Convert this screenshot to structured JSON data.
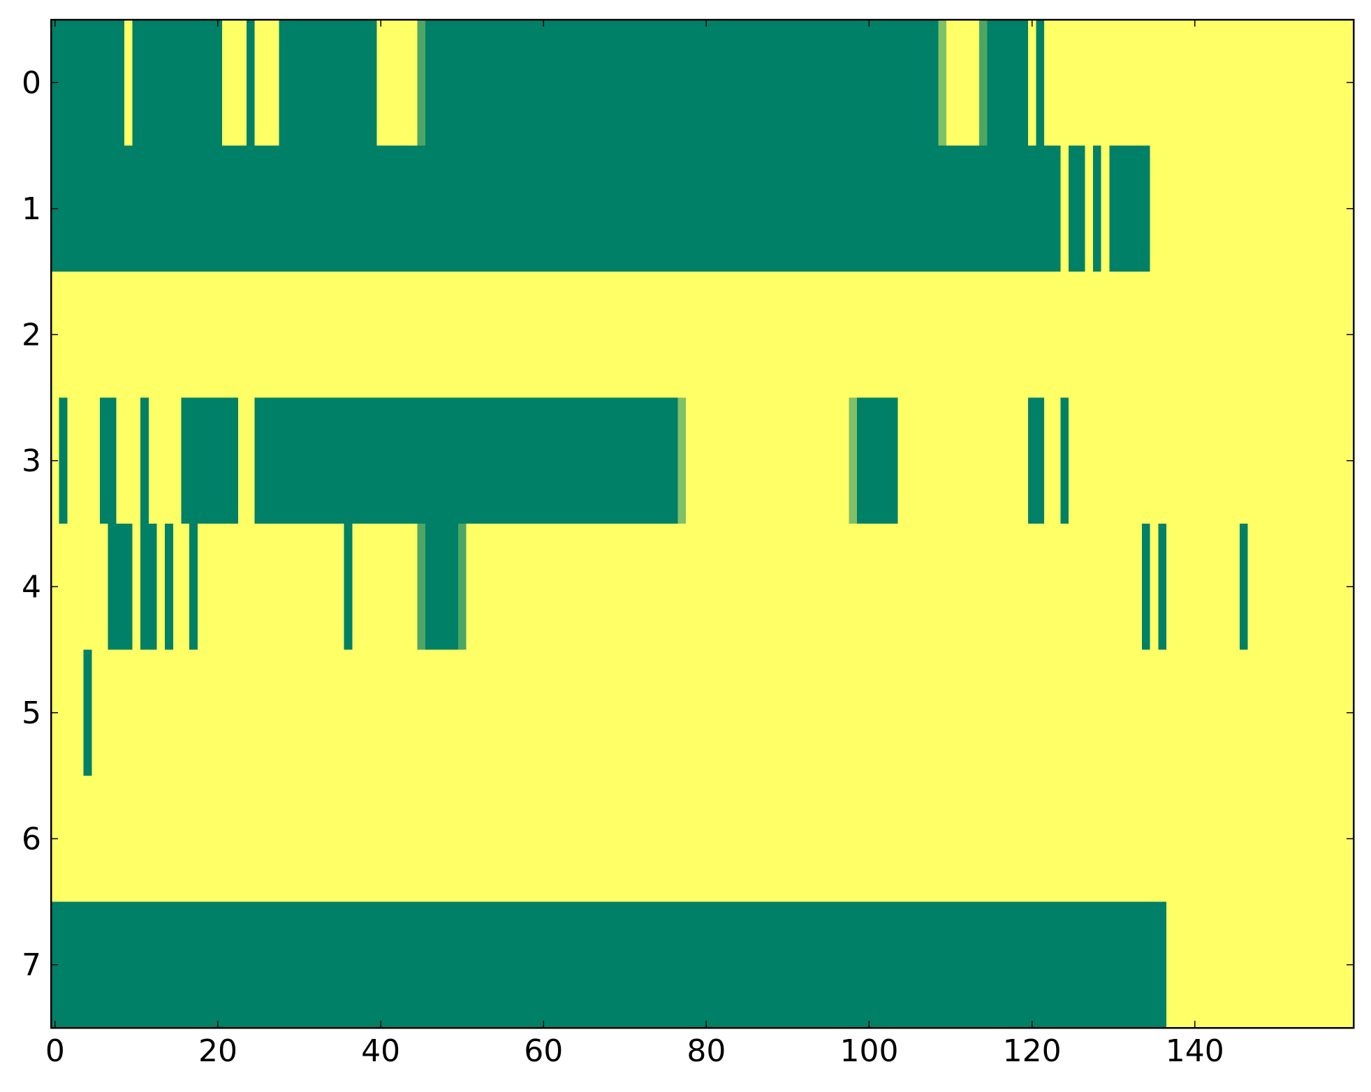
{
  "chart_data": {
    "type": "heatmap",
    "xlim": [
      -0.5,
      159.5
    ],
    "ylim": [
      7.5,
      -0.5
    ],
    "xticks": [
      0,
      20,
      40,
      60,
      80,
      100,
      120,
      140
    ],
    "yticks": [
      0,
      1,
      2,
      3,
      4,
      5,
      6,
      7
    ],
    "colormap": "summer",
    "clim": [
      0,
      1
    ],
    "colors": [
      "#008066",
      "#ffff66"
    ],
    "values": [
      [
        0,
        0,
        0,
        0,
        0,
        0,
        0,
        0,
        0,
        1,
        0,
        0,
        0,
        0,
        0,
        0,
        0,
        0,
        0,
        0,
        0,
        1,
        1,
        1,
        0,
        1,
        1,
        1,
        0,
        0,
        0,
        0,
        0,
        0,
        0,
        0,
        0,
        0,
        0,
        0,
        1,
        1,
        1,
        1,
        1,
        0.3,
        0,
        0,
        0,
        0,
        0,
        0,
        0,
        0,
        0,
        0,
        0,
        0,
        0,
        0,
        0,
        0,
        0,
        0,
        0,
        0,
        0,
        0,
        0,
        0,
        0,
        0,
        0,
        0,
        0,
        0,
        0,
        0,
        0,
        0,
        0,
        0,
        0,
        0,
        0,
        0,
        0,
        0,
        0,
        0,
        0,
        0,
        0,
        0,
        0,
        0,
        0,
        0,
        0,
        0,
        0,
        0,
        0,
        0,
        0,
        0,
        0,
        0,
        0,
        0.5,
        1,
        1,
        1,
        1,
        0.3,
        0,
        0,
        0,
        0,
        0,
        1,
        0,
        1,
        1,
        1,
        1,
        1,
        1,
        1,
        1,
        1,
        1,
        1,
        1,
        1,
        1,
        1,
        1,
        1,
        1,
        1,
        1,
        1,
        1,
        1,
        1,
        1,
        1,
        1,
        1,
        1,
        1,
        1,
        1,
        1,
        1,
        1,
        1,
        1,
        1
      ],
      [
        0,
        0,
        0,
        0,
        0,
        0,
        0,
        0,
        0,
        0,
        0,
        0,
        0,
        0,
        0,
        0,
        0,
        0,
        0,
        0,
        0,
        0,
        0,
        0,
        0,
        0,
        0,
        0,
        0,
        0,
        0,
        0,
        0,
        0,
        0,
        0,
        0,
        0,
        0,
        0,
        0,
        0,
        0,
        0,
        0,
        0,
        0,
        0,
        0,
        0,
        0,
        0,
        0,
        0,
        0,
        0,
        0,
        0,
        0,
        0,
        0,
        0,
        0,
        0,
        0,
        0,
        0,
        0,
        0,
        0,
        0,
        0,
        0,
        0,
        0,
        0,
        0,
        0,
        0,
        0,
        0,
        0,
        0,
        0,
        0,
        0,
        0,
        0,
        0,
        0,
        0,
        0,
        0,
        0,
        0,
        0,
        0,
        0,
        0,
        0,
        0,
        0,
        0,
        0,
        0,
        0,
        0,
        0,
        0,
        0,
        0,
        0,
        0,
        0,
        0,
        0,
        0,
        0,
        0,
        0,
        0,
        0,
        0,
        0,
        1,
        0,
        0,
        1,
        0,
        1,
        0,
        0,
        0,
        0,
        0,
        1,
        1,
        1,
        1,
        1,
        1,
        1,
        1,
        1,
        1,
        1,
        1,
        1,
        1,
        1,
        1,
        1,
        1,
        1,
        1,
        1,
        1,
        1,
        1,
        1
      ],
      [
        1,
        1,
        1,
        1,
        1,
        1,
        1,
        1,
        1,
        1,
        1,
        1,
        1,
        1,
        1,
        1,
        1,
        1,
        1,
        1,
        1,
        1,
        1,
        1,
        1,
        1,
        1,
        1,
        1,
        1,
        1,
        1,
        1,
        1,
        1,
        1,
        1,
        1,
        1,
        1,
        1,
        1,
        1,
        1,
        1,
        1,
        1,
        1,
        1,
        1,
        1,
        1,
        1,
        1,
        1,
        1,
        1,
        1,
        1,
        1,
        1,
        1,
        1,
        1,
        1,
        1,
        1,
        1,
        1,
        1,
        1,
        1,
        1,
        1,
        1,
        1,
        1,
        1,
        1,
        1,
        1,
        1,
        1,
        1,
        1,
        1,
        1,
        1,
        1,
        1,
        1,
        1,
        1,
        1,
        1,
        1,
        1,
        1,
        1,
        1,
        1,
        1,
        1,
        1,
        1,
        1,
        1,
        1,
        1,
        1,
        1,
        1,
        1,
        1,
        1,
        1,
        1,
        1,
        1,
        1,
        1,
        1,
        1,
        1,
        1,
        1,
        1,
        1,
        1,
        1,
        1,
        1,
        1,
        1,
        1,
        1,
        1,
        1,
        1,
        1,
        1,
        1,
        1,
        1,
        1,
        1,
        1,
        1,
        1,
        1,
        1,
        1,
        1,
        1,
        1,
        1,
        1,
        1,
        1,
        1
      ],
      [
        1,
        0,
        1,
        1,
        1,
        1,
        0,
        0,
        1,
        1,
        1,
        0,
        1,
        1,
        1,
        1,
        0,
        0,
        0,
        0,
        0,
        0,
        0,
        1,
        1,
        0,
        0,
        0,
        0,
        0,
        0,
        0,
        0,
        0,
        0,
        0,
        0,
        0,
        0,
        0,
        0,
        0,
        0,
        0,
        0,
        0,
        0,
        0,
        0,
        0,
        0,
        0,
        0,
        0,
        0,
        0,
        0,
        0,
        0,
        0,
        0,
        0,
        0,
        0,
        0,
        0,
        0,
        0,
        0,
        0,
        0,
        0,
        0,
        0,
        0,
        0,
        0,
        0.5,
        1,
        1,
        1,
        1,
        1,
        1,
        1,
        1,
        1,
        1,
        1,
        1,
        1,
        1,
        1,
        1,
        1,
        1,
        1,
        1,
        0.5,
        0,
        0,
        0,
        0,
        0,
        1,
        1,
        1,
        1,
        1,
        1,
        1,
        1,
        1,
        1,
        1,
        1,
        1,
        1,
        1,
        1,
        0,
        0,
        1,
        1,
        0,
        1,
        1,
        1,
        1,
        1,
        1,
        1,
        1,
        1,
        1,
        1,
        1,
        1,
        1,
        1,
        1,
        1,
        1,
        1,
        1,
        1,
        1,
        1,
        1,
        1,
        1,
        1,
        1,
        1,
        1,
        1,
        1,
        1,
        1,
        1
      ],
      [
        1,
        1,
        1,
        1,
        1,
        1,
        1,
        0,
        0,
        0,
        1,
        0,
        0,
        1,
        0,
        1,
        1,
        0,
        1,
        1,
        1,
        1,
        1,
        1,
        1,
        1,
        1,
        1,
        1,
        1,
        1,
        1,
        1,
        1,
        1,
        1,
        0,
        1,
        1,
        1,
        1,
        1,
        1,
        1,
        1,
        0.3,
        0,
        0,
        0,
        0,
        0.3,
        1,
        1,
        1,
        1,
        1,
        1,
        1,
        1,
        1,
        1,
        1,
        1,
        1,
        1,
        1,
        1,
        1,
        1,
        1,
        1,
        1,
        1,
        1,
        1,
        1,
        1,
        1,
        1,
        1,
        1,
        1,
        1,
        1,
        1,
        1,
        1,
        1,
        1,
        1,
        1,
        1,
        1,
        1,
        1,
        1,
        1,
        1,
        1,
        1,
        1,
        1,
        1,
        1,
        1,
        1,
        1,
        1,
        1,
        1,
        1,
        1,
        1,
        1,
        1,
        1,
        1,
        1,
        1,
        1,
        1,
        1,
        1,
        1,
        1,
        1,
        1,
        1,
        1,
        1,
        1,
        1,
        1,
        1,
        0,
        1,
        0,
        1,
        1,
        1,
        1,
        1,
        1,
        1,
        1,
        1,
        0,
        1,
        1,
        1,
        1,
        1,
        1,
        1,
        1,
        1,
        1,
        1,
        1,
        1
      ],
      [
        1,
        1,
        1,
        1,
        0,
        1,
        1,
        1,
        1,
        1,
        1,
        1,
        1,
        1,
        1,
        1,
        1,
        1,
        1,
        1,
        1,
        1,
        1,
        1,
        1,
        1,
        1,
        1,
        1,
        1,
        1,
        1,
        1,
        1,
        1,
        1,
        1,
        1,
        1,
        1,
        1,
        1,
        1,
        1,
        1,
        1,
        1,
        1,
        1,
        1,
        1,
        1,
        1,
        1,
        1,
        1,
        1,
        1,
        1,
        1,
        1,
        1,
        1,
        1,
        1,
        1,
        1,
        1,
        1,
        1,
        1,
        1,
        1,
        1,
        1,
        1,
        1,
        1,
        1,
        1,
        1,
        1,
        1,
        1,
        1,
        1,
        1,
        1,
        1,
        1,
        1,
        1,
        1,
        1,
        1,
        1,
        1,
        1,
        1,
        1,
        1,
        1,
        1,
        1,
        1,
        1,
        1,
        1,
        1,
        1,
        1,
        1,
        1,
        1,
        1,
        1,
        1,
        1,
        1,
        1,
        1,
        1,
        1,
        1,
        1,
        1,
        1,
        1,
        1,
        1,
        1,
        1,
        1,
        1,
        1,
        1,
        1,
        1,
        1,
        1,
        1,
        1,
        1,
        1,
        1,
        1,
        1,
        1,
        1,
        1,
        1,
        1,
        1,
        1,
        1,
        1,
        1,
        1,
        1,
        1
      ],
      [
        1,
        1,
        1,
        1,
        1,
        1,
        1,
        1,
        1,
        1,
        1,
        1,
        1,
        1,
        1,
        1,
        1,
        1,
        1,
        1,
        1,
        1,
        1,
        1,
        1,
        1,
        1,
        1,
        1,
        1,
        1,
        1,
        1,
        1,
        1,
        1,
        1,
        1,
        1,
        1,
        1,
        1,
        1,
        1,
        1,
        1,
        1,
        1,
        1,
        1,
        1,
        1,
        1,
        1,
        1,
        1,
        1,
        1,
        1,
        1,
        1,
        1,
        1,
        1,
        1,
        1,
        1,
        1,
        1,
        1,
        1,
        1,
        1,
        1,
        1,
        1,
        1,
        1,
        1,
        1,
        1,
        1,
        1,
        1,
        1,
        1,
        1,
        1,
        1,
        1,
        1,
        1,
        1,
        1,
        1,
        1,
        1,
        1,
        1,
        1,
        1,
        1,
        1,
        1,
        1,
        1,
        1,
        1,
        1,
        1,
        1,
        1,
        1,
        1,
        1,
        1,
        1,
        1,
        1,
        1,
        1,
        1,
        1,
        1,
        1,
        1,
        1,
        1,
        1,
        1,
        1,
        1,
        1,
        1,
        1,
        1,
        1,
        1,
        1,
        1,
        1,
        1,
        1,
        1,
        1,
        1,
        1,
        1,
        1,
        1,
        1,
        1,
        1,
        1,
        1,
        1,
        1,
        1,
        1,
        1
      ],
      [
        0,
        0,
        0,
        0,
        0,
        0,
        0,
        0,
        0,
        0,
        0,
        0,
        0,
        0,
        0,
        0,
        0,
        0,
        0,
        0,
        0,
        0,
        0,
        0,
        0,
        0,
        0,
        0,
        0,
        0,
        0,
        0,
        0,
        0,
        0,
        0,
        0,
        0,
        0,
        0,
        0,
        0,
        0,
        0,
        0,
        0,
        0,
        0,
        0,
        0,
        0,
        0,
        0,
        0,
        0,
        0,
        0,
        0,
        0,
        0,
        0,
        0,
        0,
        0,
        0,
        0,
        0,
        0,
        0,
        0,
        0,
        0,
        0,
        0,
        0,
        0,
        0,
        0,
        0,
        0,
        0,
        0,
        0,
        0,
        0,
        0,
        0,
        0,
        0,
        0,
        0,
        0,
        0,
        0,
        0,
        0,
        0,
        0,
        0,
        0,
        0,
        0,
        0,
        0,
        0,
        0,
        0,
        0,
        0,
        0,
        0,
        0,
        0,
        0,
        0,
        0,
        0,
        0,
        0,
        0,
        0,
        0,
        0,
        0,
        0,
        0,
        0,
        0,
        0,
        0,
        0,
        0,
        0,
        0,
        0,
        0,
        0,
        1,
        1,
        1,
        1,
        1,
        1,
        1,
        1,
        1,
        1,
        1,
        1,
        1,
        1,
        1,
        1,
        1,
        1,
        1,
        1,
        1,
        1,
        1
      ]
    ]
  }
}
